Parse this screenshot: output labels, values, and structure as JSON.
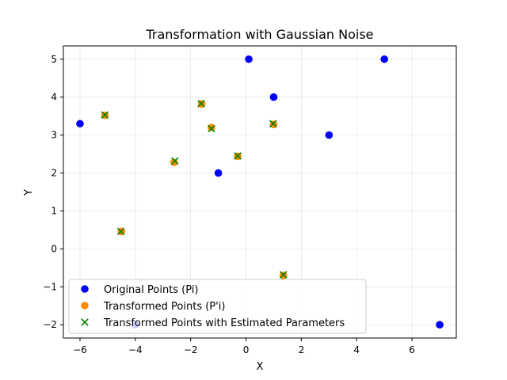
{
  "chart_data": {
    "type": "scatter",
    "title": "Transformation with Gaussian Noise",
    "xlabel": "X",
    "ylabel": "Y",
    "xlim": [
      -6.6,
      7.6
    ],
    "ylim": [
      -2.35,
      5.35
    ],
    "xticks": [
      -6,
      -4,
      -2,
      0,
      2,
      4,
      6
    ],
    "yticks": [
      -2,
      -1,
      0,
      1,
      2,
      3,
      4,
      5
    ],
    "grid": true,
    "legend_position": "lower-left",
    "series": [
      {
        "name": "Original Points (Pi)",
        "marker": "circle",
        "color": "#0000ff",
        "points": [
          [
            -6,
            3.3
          ],
          [
            0.1,
            5
          ],
          [
            1,
            4
          ],
          [
            5,
            5
          ],
          [
            3,
            3
          ],
          [
            -1,
            2
          ],
          [
            -4,
            -2
          ],
          [
            7,
            -2
          ]
        ]
      },
      {
        "name": "Transformed Points (P'i)",
        "marker": "circle",
        "color": "#ff8c00",
        "points": [
          [
            -5.1,
            3.52
          ],
          [
            -1.6,
            3.82
          ],
          [
            -1.25,
            3.2
          ],
          [
            1,
            3.28
          ],
          [
            -2.6,
            2.28
          ],
          [
            -0.3,
            2.44
          ],
          [
            -4.5,
            0.46
          ],
          [
            1.35,
            -0.7
          ]
        ]
      },
      {
        "name": "Transformed Points with Estimated Parameters",
        "marker": "x",
        "color": "#008000",
        "points": [
          [
            -5.1,
            3.53
          ],
          [
            -1.62,
            3.83
          ],
          [
            -1.25,
            3.17
          ],
          [
            0.98,
            3.3
          ],
          [
            -2.57,
            2.32
          ],
          [
            -0.3,
            2.45
          ],
          [
            -4.52,
            0.46
          ],
          [
            1.35,
            -0.68
          ]
        ]
      }
    ]
  }
}
